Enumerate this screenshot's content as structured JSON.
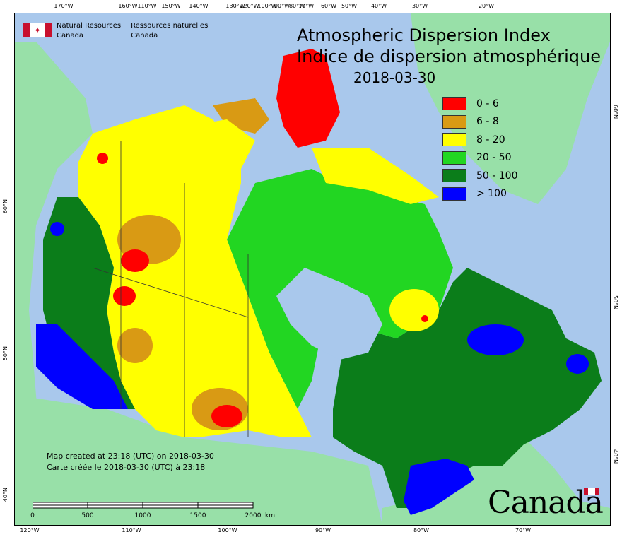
{
  "titles": {
    "english": "Atmospheric Dispersion Index",
    "french": "Indice de dispersion atmosphérique",
    "date": "2018-03-30"
  },
  "agency": {
    "en_line1": "Natural Resources",
    "en_line2": "Canada",
    "fr_line1": "Ressources naturelles",
    "fr_line2": "Canada"
  },
  "legend": [
    {
      "label": "0 - 6",
      "color": "#ff0000"
    },
    {
      "label": "6 - 8",
      "color": "#d99a14"
    },
    {
      "label": "8 - 20",
      "color": "#ffff00"
    },
    {
      "label": "20 - 50",
      "color": "#22d622"
    },
    {
      "label": "50 - 100",
      "color": "#0b7d1a"
    },
    {
      "label": "> 100",
      "color": "#0000ff"
    }
  ],
  "colors": {
    "water": "#a9c8ec",
    "land_outside": "#98e0a8",
    "border": "#333333"
  },
  "longitude_ticks_top": [
    "170°W",
    "160°W",
    "150°W",
    "140°W",
    "130°W",
    "120°W",
    "110°W",
    "100°W",
    "90°W",
    "80°W",
    "70°W",
    "60°W",
    "50°W",
    "40°W",
    "30°W",
    "20°W"
  ],
  "longitude_ticks_bottom": [
    "120°W",
    "110°W",
    "100°W",
    "90°W",
    "80°W",
    "70°W"
  ],
  "latitude_ticks_left": [
    "60°N",
    "50°N",
    "40°N"
  ],
  "latitude_ticks_right": [
    "60°N",
    "50°N",
    "40°N"
  ],
  "credits": {
    "en": "Map created at 23:18 (UTC) on 2018-03-30",
    "fr": "Carte créée le 2018-03-30 (UTC) à 23:18"
  },
  "scale_bar": {
    "labels": [
      "0",
      "500",
      "1000",
      "1500",
      "2000"
    ],
    "unit": "km"
  },
  "wordmark": "Canada"
}
